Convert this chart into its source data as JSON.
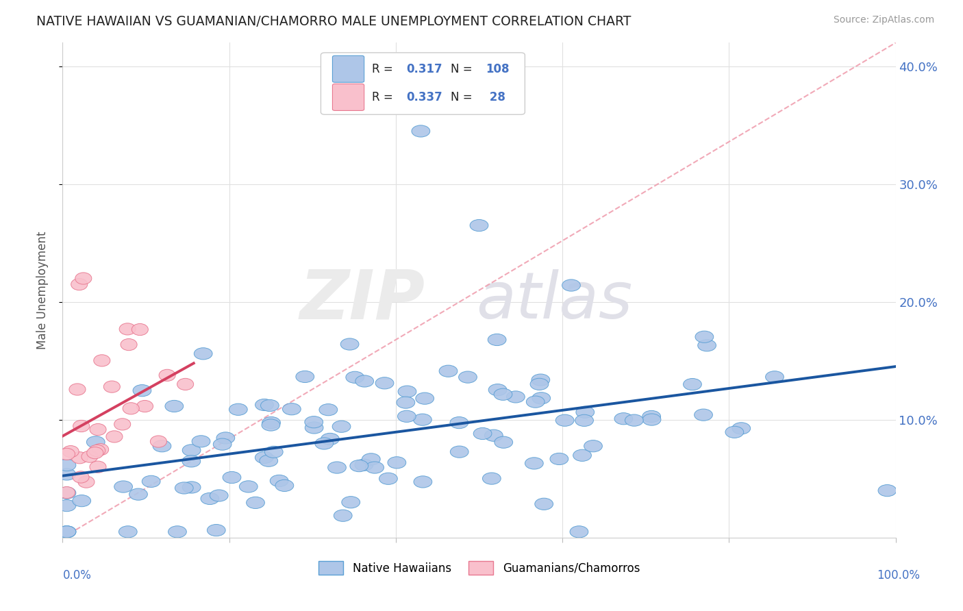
{
  "title": "NATIVE HAWAIIAN VS GUAMANIAN/CHAMORRO MALE UNEMPLOYMENT CORRELATION CHART",
  "source": "Source: ZipAtlas.com",
  "ylabel": "Male Unemployment",
  "blue_R": 0.317,
  "blue_N": 108,
  "pink_R": 0.337,
  "pink_N": 28,
  "blue_color": "#aec6e8",
  "blue_edge_color": "#5a9fd4",
  "blue_line_color": "#1a56a0",
  "pink_color": "#f9c0cc",
  "pink_edge_color": "#e87890",
  "pink_line_color": "#d44060",
  "ref_line_color": "#f0a0b0",
  "watermark_zip_color": "#e8e8e8",
  "watermark_atlas_color": "#d8d8e8",
  "background_color": "#ffffff",
  "grid_color": "#e0e0e0",
  "title_color": "#222222",
  "axis_label_color": "#4472c4",
  "ylabel_color": "#555555",
  "source_color": "#999999",
  "legend_text_color": "#222222",
  "legend_value_color": "#4472c4",
  "xlim": [
    0.0,
    1.0
  ],
  "ylim": [
    0.0,
    0.42
  ],
  "yticks": [
    0.1,
    0.2,
    0.3,
    0.4
  ],
  "ytick_labels": [
    "10.0%",
    "20.0%",
    "30.0%",
    "40.0%"
  ],
  "blue_line_x": [
    0.0,
    1.0
  ],
  "blue_line_y": [
    0.045,
    0.155
  ],
  "pink_line_x": [
    0.0,
    0.2
  ],
  "pink_line_y": [
    0.045,
    0.155
  ],
  "ref_line_x": [
    0.0,
    1.0
  ],
  "ref_line_y": [
    0.0,
    0.42
  ]
}
